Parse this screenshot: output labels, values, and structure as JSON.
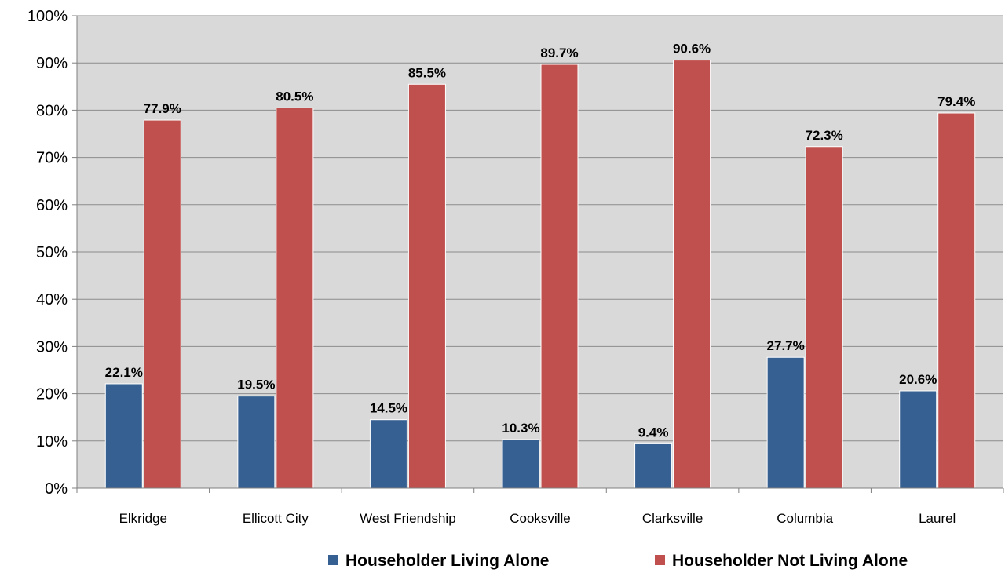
{
  "chart_data": {
    "type": "bar",
    "title": "",
    "xlabel": "",
    "ylabel": "",
    "categories": [
      "Elkridge",
      "Ellicott City",
      "West Friendship",
      "Cooksville",
      "Clarksville",
      "Columbia",
      "Laurel"
    ],
    "series": [
      {
        "name": "Householder Living Alone",
        "color": "#376092",
        "values": [
          22.1,
          19.5,
          14.5,
          10.3,
          9.4,
          27.7,
          20.6
        ],
        "labels": [
          "22.1%",
          "19.5%",
          "14.5%",
          "10.3%",
          "9.4%",
          "27.7%",
          "20.6%"
        ]
      },
      {
        "name": "Householder Not Living Alone",
        "color": "#C0504D",
        "values": [
          77.9,
          80.5,
          85.5,
          89.7,
          90.6,
          72.3,
          79.4
        ],
        "labels": [
          "77.9%",
          "80.5%",
          "85.5%",
          "89.7%",
          "90.6%",
          "72.3%",
          "79.4%"
        ]
      }
    ],
    "ylim": [
      0,
      100
    ],
    "yticks": [
      0,
      10,
      20,
      30,
      40,
      50,
      60,
      70,
      80,
      90,
      100
    ],
    "ytick_labels": [
      "0%",
      "10%",
      "20%",
      "30%",
      "40%",
      "50%",
      "60%",
      "70%",
      "80%",
      "90%",
      "100%"
    ],
    "grid": true,
    "plot_background": "#D9D9D9",
    "legend_position": "bottom"
  }
}
